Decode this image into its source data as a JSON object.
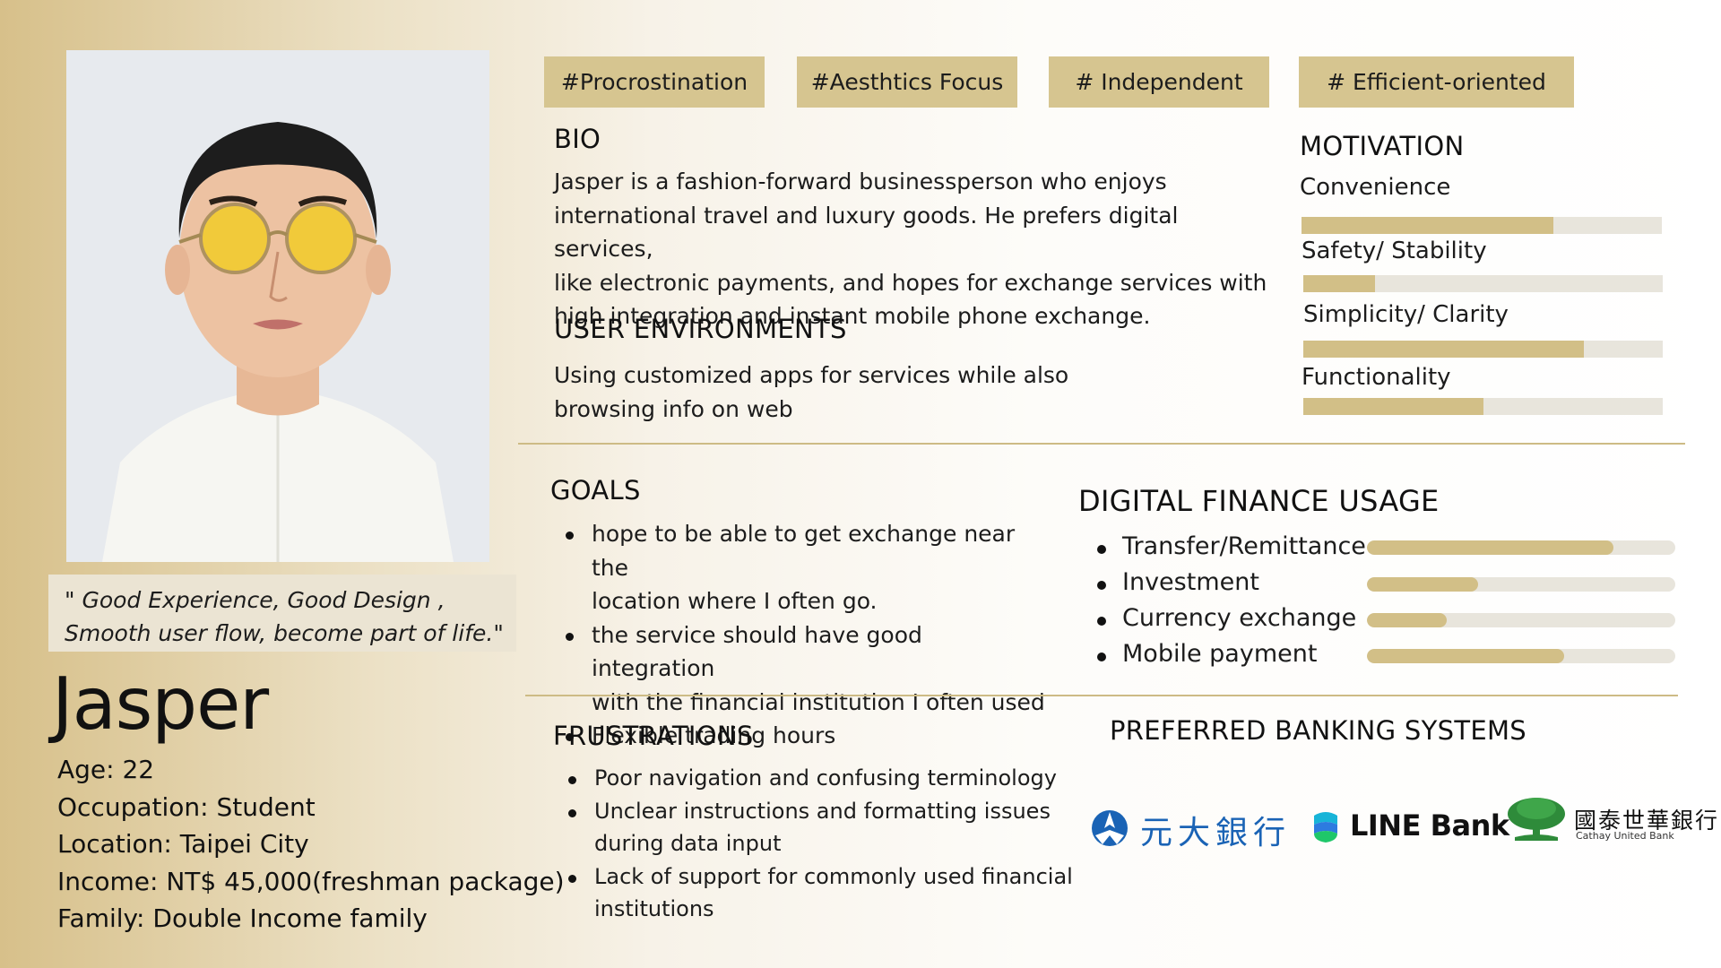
{
  "tags": [
    "#Procrostination",
    "#Aesthtics Focus",
    "# Independent",
    "# Efficient-oriented"
  ],
  "persona": {
    "quote_line1": "\" Good Experience, Good Design ,",
    "quote_line2": "Smooth user flow, become part of life.\"",
    "name": "Jasper",
    "age": "Age: 22",
    "occupation": "Occupation: Student",
    "location": "Location: Taipei City",
    "income": "Income: NT$ 45,000(freshman package)",
    "family": "Family: Double Income family"
  },
  "bio": {
    "heading": "BIO",
    "lines": [
      "Jasper is a fashion-forward businessperson who enjoys",
      "international travel and luxury goods. He prefers digital services,",
      "like electronic payments, and hopes for exchange services with",
      "high integration and instant mobile phone exchange."
    ]
  },
  "environments": {
    "heading": "USER ENVIRONMENTS",
    "lines": [
      "Using customized apps for services while also",
      "browsing info on web"
    ]
  },
  "motivation": {
    "heading": "MOTIVATION",
    "items": [
      {
        "label": "Convenience",
        "level": 0.7
      },
      {
        "label": "Safety/ Stability",
        "level": 0.2
      },
      {
        "label": "Simplicity/ Clarity",
        "level": 0.78
      },
      {
        "label": "Functionality",
        "level": 0.5
      }
    ]
  },
  "goals": {
    "heading": "GOALS",
    "items": [
      {
        "line1": "hope to be able to get exchange near the",
        "line2": "location where I often go."
      },
      {
        "line1": "the service should have good integration",
        "line2": "with the financial institution I often used"
      },
      {
        "line1": "Flexible trading hours",
        "line2": ""
      }
    ]
  },
  "digital_finance": {
    "heading": "DIGITAL FINANCE USAGE",
    "items": [
      {
        "label": "Transfer/Remittance",
        "level": 0.8
      },
      {
        "label": "Investment",
        "level": 0.36
      },
      {
        "label": "Currency exchange",
        "level": 0.26
      },
      {
        "label": "Mobile payment",
        "level": 0.64
      }
    ]
  },
  "frustrations": {
    "heading": "FRUSTRATIONS",
    "items": [
      {
        "line1": "Poor navigation and confusing terminology",
        "line2": ""
      },
      {
        "line1": "Unclear instructions and formatting issues",
        "line2": "during data input"
      },
      {
        "line1": "Lack of support for commonly used financial",
        "line2": "institutions"
      }
    ]
  },
  "banking": {
    "heading": "PREFERRED BANKING SYSTEMS",
    "logos": {
      "yuanta": "元大銀行",
      "line": "LINE Bank",
      "cathay": "國泰世華銀行",
      "cathay_sub": "Cathay United Bank"
    }
  },
  "colors": {
    "accent": "#d6c590",
    "bar_fill": "#d2bf87",
    "bar_track": "#e8e5dc",
    "yuanta_blue": "#1a63b5",
    "cathay_green": "#2e8b3a"
  }
}
